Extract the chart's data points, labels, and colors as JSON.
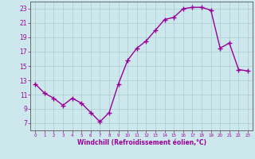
{
  "x": [
    0,
    1,
    2,
    3,
    4,
    5,
    6,
    7,
    8,
    9,
    10,
    11,
    12,
    13,
    14,
    15,
    16,
    17,
    18,
    19,
    20,
    21,
    22,
    23
  ],
  "y": [
    12.5,
    11.2,
    10.5,
    9.5,
    10.5,
    9.8,
    8.5,
    7.2,
    8.5,
    12.5,
    15.8,
    17.5,
    18.5,
    20.0,
    21.5,
    21.8,
    23.0,
    23.2,
    23.2,
    22.8,
    17.5,
    18.2,
    14.5,
    14.3
  ],
  "xlabel": "Windchill (Refroidissement éolien,°C)",
  "ylim": [
    6,
    24
  ],
  "xlim": [
    -0.5,
    23.5
  ],
  "yticks": [
    7,
    9,
    11,
    13,
    15,
    17,
    19,
    21,
    23
  ],
  "xticks": [
    0,
    1,
    2,
    3,
    4,
    5,
    6,
    7,
    8,
    9,
    10,
    11,
    12,
    13,
    14,
    15,
    16,
    17,
    18,
    19,
    20,
    21,
    22,
    23
  ],
  "line_color": "#990099",
  "marker": "+",
  "marker_size": 4,
  "bg_color": "#cce8ec",
  "grid_color": "#aacccc",
  "xlabel_color": "#990099",
  "tick_color": "#990099",
  "spine_color": "#555555",
  "linewidth": 1.0
}
